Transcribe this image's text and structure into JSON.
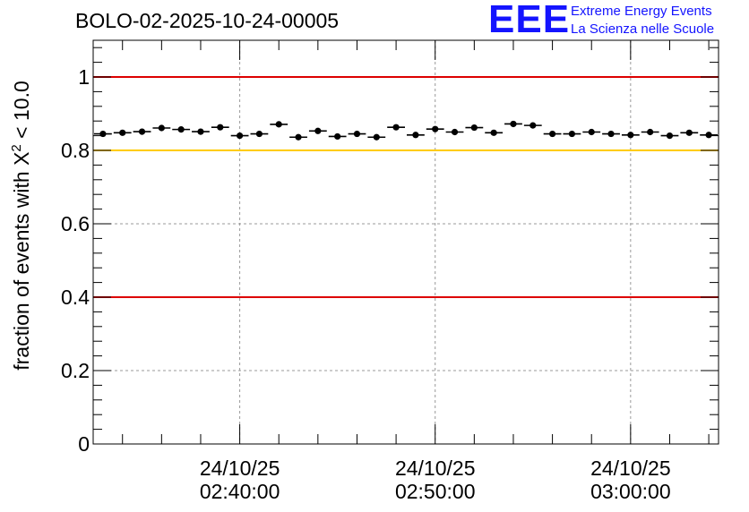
{
  "header": {
    "run_id": "BOLO-02-2025-10-24-00005"
  },
  "logo": {
    "mark": "EEE",
    "line1": "Extreme Energy Events",
    "line2": "La Scienza nelle Scuole",
    "color": "#1414ff"
  },
  "chart_data": {
    "type": "scatter",
    "title": "BOLO-02-2025-10-24-00005",
    "ylabel_prefix": "fraction of events with ",
    "ylabel_symbol": "X",
    "ylabel_sup": "2",
    "ylabel_suffix": " < 10.0",
    "xlabel": "",
    "ylim": [
      0,
      1.1
    ],
    "y_ticks": [
      0,
      0.2,
      0.4,
      0.6,
      0.8,
      1
    ],
    "y_tick_labels": [
      "0",
      "0.2",
      "0.4",
      "0.6",
      "0.8",
      "1"
    ],
    "x_time_range_min": [
      0,
      32
    ],
    "x_ticks": [
      {
        "t": 7.5,
        "date": "24/10/25",
        "time": "02:40:00"
      },
      {
        "t": 17.5,
        "date": "24/10/25",
        "time": "02:50:00"
      },
      {
        "t": 27.5,
        "date": "24/10/25",
        "time": "03:00:00"
      }
    ],
    "grid": true,
    "reference_lines": [
      {
        "y": 1.0,
        "color": "#dd0000"
      },
      {
        "y": 0.8,
        "color": "#ffcc00"
      },
      {
        "y": 0.4,
        "color": "#dd0000"
      }
    ],
    "series": [
      {
        "name": "fraction",
        "bin_width_min": 1,
        "values": [
          0.845,
          0.848,
          0.851,
          0.861,
          0.857,
          0.851,
          0.863,
          0.84,
          0.845,
          0.871,
          0.836,
          0.853,
          0.838,
          0.845,
          0.836,
          0.863,
          0.842,
          0.858,
          0.85,
          0.862,
          0.848,
          0.872,
          0.868,
          0.845,
          0.845,
          0.85,
          0.845,
          0.842,
          0.85,
          0.84,
          0.848,
          0.842
        ]
      }
    ]
  }
}
